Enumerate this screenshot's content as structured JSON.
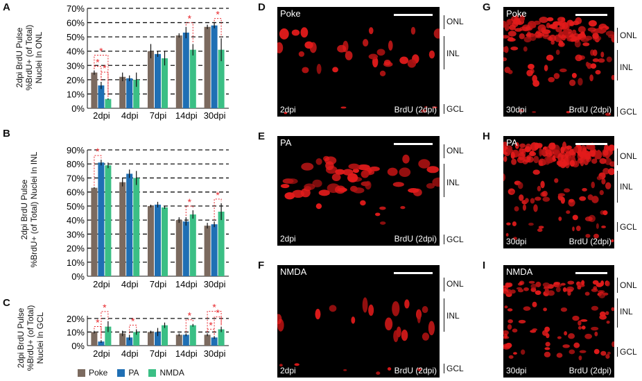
{
  "panels": {
    "A": "A",
    "B": "B",
    "C": "C",
    "D": "D",
    "E": "E",
    "F": "F",
    "G": "G",
    "H": "H",
    "I": "I"
  },
  "colors": {
    "poke": "#7b6a5f",
    "pa": "#1f6fb4",
    "nmda": "#3bbf85",
    "significance": "#e8252a"
  },
  "legend": {
    "poke": "Poke",
    "pa": "PA",
    "nmda": "NMDA"
  },
  "chart_data": [
    {
      "type": "bar",
      "panel": "A",
      "ylabel": "2dpi BrdU Pulse\n%BrdU+ (of Total)\nNuclei In ONL",
      "categories": [
        "2dpi",
        "4dpi",
        "7dpi",
        "14dpi",
        "30dpi"
      ],
      "yticks": [
        "0%",
        "10%",
        "20%",
        "30%",
        "40%",
        "50%",
        "60%",
        "70%"
      ],
      "ylim": [
        0,
        70
      ],
      "series": [
        {
          "name": "Poke",
          "values": [
            25,
            22,
            40,
            51,
            57
          ],
          "errors": [
            1.5,
            3,
            5,
            1.5,
            1.5
          ]
        },
        {
          "name": "PA",
          "values": [
            16,
            21,
            38,
            53,
            58
          ],
          "errors": [
            2.5,
            2,
            2,
            4,
            2
          ]
        },
        {
          "name": "NMDA",
          "values": [
            6.5,
            20,
            35,
            41,
            41
          ],
          "errors": [
            0.5,
            5,
            5,
            4,
            8
          ]
        }
      ],
      "significance": [
        "*",
        "*",
        "*",
        "*",
        "*"
      ]
    },
    {
      "type": "bar",
      "panel": "B",
      "ylabel": "2dpi BrdU Pulse\n%BrdU+ (of Total) Nuclei In INL",
      "categories": [
        "2dpi",
        "4dpi",
        "7dpi",
        "14dpi",
        "30dpi"
      ],
      "yticks": [
        "0%",
        "10%",
        "20%",
        "30%",
        "40%",
        "50%",
        "60%",
        "70%",
        "80%",
        "90%"
      ],
      "ylim": [
        0,
        90
      ],
      "series": [
        {
          "name": "Poke",
          "values": [
            63,
            67,
            50,
            40,
            36
          ],
          "errors": [
            0.5,
            3,
            1,
            2,
            2
          ]
        },
        {
          "name": "PA",
          "values": [
            81,
            73,
            51,
            39,
            37
          ],
          "errors": [
            2,
            3,
            2,
            3,
            2
          ]
        },
        {
          "name": "NMDA",
          "values": [
            79,
            70,
            49,
            44,
            46
          ],
          "errors": [
            2,
            5,
            1,
            3,
            6
          ]
        }
      ],
      "significance": [
        "*",
        "*",
        "*"
      ]
    },
    {
      "type": "bar",
      "panel": "C",
      "ylabel": "2dpi BrdU Pulse\n%BrdU+ (of Total)\nNuclei In GCL",
      "categories": [
        "2dpi",
        "4dpi",
        "7dpi",
        "14dpi",
        "30dpi"
      ],
      "yticks": [
        "0%",
        "10%",
        "20%"
      ],
      "ylim": [
        0,
        22
      ],
      "series": [
        {
          "name": "Poke",
          "values": [
            10,
            9,
            10,
            8,
            8
          ],
          "errors": [
            1,
            2,
            1,
            1,
            1
          ]
        },
        {
          "name": "PA",
          "values": [
            3,
            6,
            10,
            8,
            6
          ],
          "errors": [
            1,
            2,
            3,
            1,
            1
          ]
        },
        {
          "name": "NMDA",
          "values": [
            14,
            10,
            15,
            15,
            12
          ],
          "errors": [
            4,
            2,
            2,
            1,
            2
          ]
        }
      ],
      "significance": [
        "*",
        "*",
        "*",
        "*",
        "*",
        "*",
        "*"
      ]
    }
  ],
  "micrographs": [
    {
      "id": "D",
      "title": "Poke",
      "time": "2dpi",
      "stain": "BrdU (2dpi)",
      "layers": [
        "ONL",
        "INL",
        "GCL"
      ]
    },
    {
      "id": "E",
      "title": "PA",
      "time": "2dpi",
      "stain": "BrdU (2dpi)",
      "layers": [
        "ONL",
        "INL",
        "GCL"
      ]
    },
    {
      "id": "F",
      "title": "NMDA",
      "time": "2dpi",
      "stain": "BrdU (2dpi)",
      "layers": [
        "ONL",
        "INL",
        "GCL"
      ]
    },
    {
      "id": "G",
      "title": "Poke",
      "time": "30dpi",
      "stain": "BrdU (2dpi)",
      "layers": [
        "ONL",
        "INL",
        "GCL"
      ]
    },
    {
      "id": "H",
      "title": "PA",
      "time": "30dpi",
      "stain": "BrdU (2dpi)",
      "layers": [
        "ONL",
        "INL",
        "GCL"
      ]
    },
    {
      "id": "I",
      "title": "NMDA",
      "time": "30dpi",
      "stain": "BrdU (2dpi)",
      "layers": [
        "ONL",
        "INL",
        "GCL"
      ]
    }
  ]
}
